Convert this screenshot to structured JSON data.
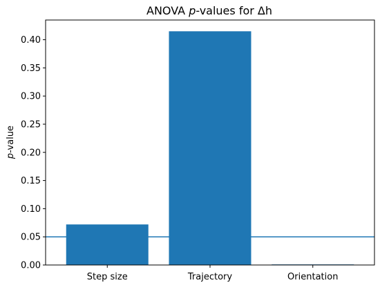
{
  "chart_data": {
    "type": "bar",
    "title_parts": {
      "prefix": "ANOVA ",
      "italic": "p",
      "suffix": "-values for Δh"
    },
    "ylabel_parts": {
      "italic": "p",
      "suffix": "-value"
    },
    "xlabel": "",
    "categories": [
      "Step size",
      "Trajectory",
      "Orientation"
    ],
    "values": [
      0.072,
      0.415,
      0.001
    ],
    "ylim": [
      0,
      0.435
    ],
    "yticks": [
      0.0,
      0.05,
      0.1,
      0.15,
      0.2,
      0.25,
      0.3,
      0.35,
      0.4
    ],
    "ytick_labels": [
      "0.00",
      "0.05",
      "0.10",
      "0.15",
      "0.20",
      "0.25",
      "0.30",
      "0.35",
      "0.40"
    ],
    "reference_line": {
      "y": 0.05
    },
    "grid": false,
    "colors": {
      "bar": "#1f77b4",
      "reference_line": "#1f77b4",
      "axes": "#000000"
    }
  }
}
